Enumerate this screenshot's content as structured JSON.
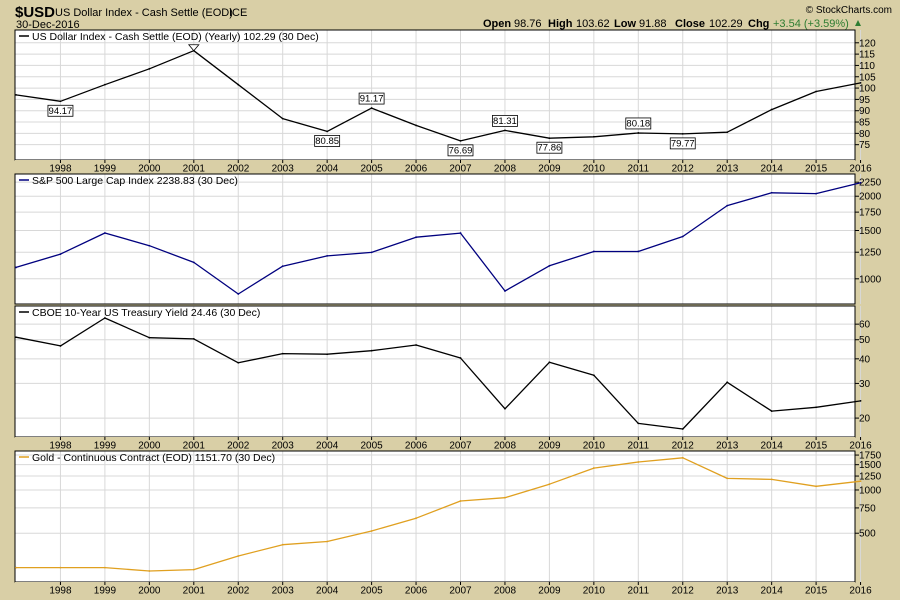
{
  "header": {
    "symbol": "$USD",
    "name": "US Dollar Index - Cash Settle (EOD)",
    "exchange": "ICE",
    "date": "30-Dec-2016",
    "watermark": "© StockCharts.com",
    "quote": {
      "open_label": "Open",
      "open": "98.76",
      "high_label": "High",
      "high": "103.62",
      "low_label": "Low",
      "low": "91.88",
      "close_label": "Close",
      "close": "102.29",
      "chg_label": "Chg",
      "chg": "+3.54 (+3.59%)"
    }
  },
  "colors": {
    "background": "#d9cfa6",
    "panel": "#ffffff",
    "usd_line": "#000000",
    "spx_line": "#00007f",
    "tnx_line": "#000000",
    "gold_line": "#e0a020",
    "up_triangle": "#2e7d32"
  },
  "chart_data": [
    {
      "type": "line",
      "title": "US Dollar Index - Cash Settle (EOD) (Yearly) 102.29 (30 Dec)",
      "x": [
        "1997",
        "1998",
        "1999",
        "2000",
        "2001",
        "2002",
        "2003",
        "2004",
        "2005",
        "2006",
        "2007",
        "2008",
        "2009",
        "2010",
        "2011",
        "2012",
        "2013",
        "2014",
        "2015",
        "2016"
      ],
      "x_tick_labels": [
        "1998",
        "1999",
        "2000",
        "2001",
        "2002",
        "2003",
        "2004",
        "2005",
        "2006",
        "2007",
        "2008",
        "2009",
        "2010",
        "2011",
        "2012",
        "2013",
        "2014",
        "2015",
        "2016"
      ],
      "series": [
        {
          "values": [
            97,
            94.17,
            101.5,
            108.5,
            116.5,
            101.5,
            86.5,
            80.85,
            91.17,
            83.5,
            76.69,
            81.31,
            77.86,
            78.5,
            80.18,
            79.77,
            80.5,
            90.5,
            98.5,
            102.29
          ]
        }
      ],
      "ylim": [
        70,
        123
      ],
      "y_ticks": [
        75,
        80,
        85,
        90,
        95,
        100,
        105,
        110,
        115,
        120
      ],
      "annotations": [
        {
          "label": "94.17",
          "x": "1998",
          "y": 94.17,
          "pos": "below"
        },
        {
          "label": "80.85",
          "x": "2004",
          "y": 80.85,
          "pos": "below"
        },
        {
          "label": "91.17",
          "x": "2005",
          "y": 91.17,
          "pos": "above"
        },
        {
          "label": "76.69",
          "x": "2007",
          "y": 76.69,
          "pos": "below"
        },
        {
          "label": "81.31",
          "x": "2008",
          "y": 81.31,
          "pos": "above"
        },
        {
          "label": "77.86",
          "x": "2009",
          "y": 77.86,
          "pos": "below"
        },
        {
          "label": "80.18",
          "x": "2011",
          "y": 80.18,
          "pos": "above"
        },
        {
          "label": "79.77",
          "x": "2012",
          "y": 79.77,
          "pos": "below"
        }
      ],
      "peak_marker": {
        "x": "2001",
        "y": 116.5
      },
      "grid": true
    },
    {
      "type": "line",
      "title": "S&P 500 Large Cap Index 2238.83 (30 Dec)",
      "x": [
        "1997",
        "1998",
        "1999",
        "2000",
        "2001",
        "2002",
        "2003",
        "2004",
        "2005",
        "2006",
        "2007",
        "2008",
        "2009",
        "2010",
        "2011",
        "2012",
        "2013",
        "2014",
        "2015",
        "2016"
      ],
      "series": [
        {
          "values": [
            1100,
            1230,
            1469,
            1320,
            1148,
            880,
            1112,
            1212,
            1248,
            1418,
            1468,
            903,
            1115,
            1258,
            1258,
            1426,
            1848,
            2059,
            2044,
            2238.83
          ]
        }
      ],
      "scale": "log",
      "ylim": [
        830,
        2350
      ],
      "y_ticks": [
        1000,
        1250,
        1500,
        1750,
        2000,
        2250
      ],
      "grid": true
    },
    {
      "type": "line",
      "title": "CBOE 10-Year US Treasury Yield 24.46 (30 Dec)",
      "x": [
        "1997",
        "1998",
        "1999",
        "2000",
        "2001",
        "2002",
        "2003",
        "2004",
        "2005",
        "2006",
        "2007",
        "2008",
        "2009",
        "2010",
        "2011",
        "2012",
        "2013",
        "2014",
        "2015",
        "2016"
      ],
      "x_tick_labels": [
        "1998",
        "1999",
        "2000",
        "2001",
        "2002",
        "2003",
        "2004",
        "2005",
        "2006",
        "2007",
        "2008",
        "2009",
        "2010",
        "2011",
        "2012",
        "2013",
        "2014",
        "2015",
        "2016"
      ],
      "series": [
        {
          "values": [
            51.5,
            46.5,
            64.5,
            51.2,
            50.5,
            38.2,
            42.5,
            42.2,
            44,
            47,
            40.4,
            22.3,
            38.4,
            33,
            18.8,
            17.6,
            30.4,
            21.7,
            22.7,
            24.46
          ]
        }
      ],
      "scale": "log",
      "ylim": [
        16.8,
        66
      ],
      "y_ticks": [
        20,
        30,
        40,
        50,
        60
      ],
      "grid": true
    },
    {
      "type": "line",
      "title": "Gold - Continuous Contract (EOD) 1151.70 (30 Dec)",
      "x": [
        "1997",
        "1998",
        "1999",
        "2000",
        "2001",
        "2002",
        "2003",
        "2004",
        "2005",
        "2006",
        "2007",
        "2008",
        "2009",
        "2010",
        "2011",
        "2012",
        "2013",
        "2014",
        "2015",
        "2016"
      ],
      "x_tick_labels": [
        "1998",
        "1999",
        "2000",
        "2001",
        "2002",
        "2003",
        "2004",
        "2005",
        "2006",
        "2007",
        "2008",
        "2009",
        "2010",
        "2011",
        "2012",
        "2013",
        "2014",
        "2015",
        "2016"
      ],
      "series": [
        {
          "values": [
            288,
            288,
            288,
            273,
            279,
            347,
            416,
            438,
            518,
            636,
            838,
            884,
            1097,
            1421,
            1566,
            1675,
            1204,
            1184,
            1060,
            1151.7
          ]
        }
      ],
      "scale": "log",
      "ylim": [
        240,
        1780
      ],
      "y_ticks": [
        500,
        750,
        1000,
        1250,
        1500,
        1750
      ],
      "grid": true
    }
  ]
}
